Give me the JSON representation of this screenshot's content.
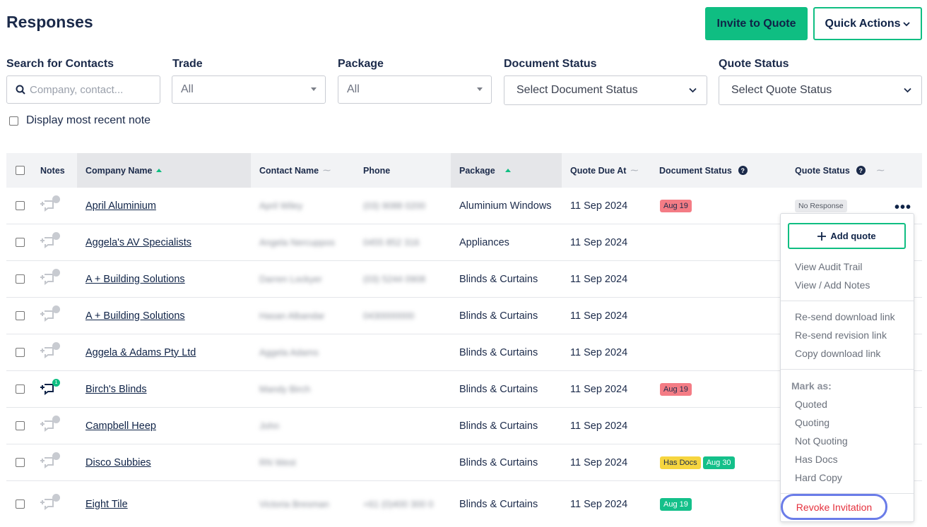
{
  "page": {
    "title": "Responses"
  },
  "header": {
    "invite_label": "Invite to Quote",
    "quick_actions_label": "Quick Actions"
  },
  "filters": {
    "search": {
      "label": "Search for Contacts",
      "placeholder": "Company, contact..."
    },
    "trade": {
      "label": "Trade",
      "value": "All"
    },
    "package": {
      "label": "Package",
      "value": "All"
    },
    "document_status": {
      "label": "Document Status",
      "value": "Select Document Status"
    },
    "quote_status": {
      "label": "Quote Status",
      "value": "Select Quote Status"
    },
    "recent_note_label": "Display most recent note"
  },
  "table": {
    "headers": {
      "notes": "Notes",
      "company": "Company Name",
      "contact": "Contact Name",
      "phone": "Phone",
      "package": "Package",
      "due": "Quote Due At",
      "doc_status": "Document Status",
      "quote_status": "Quote Status"
    },
    "rows": [
      {
        "notes": "",
        "company": "April Aluminium",
        "contact": "April Wiley",
        "phone": "(03) 9088 0200",
        "package": "Aluminium Windows",
        "due": "11 Sep 2024",
        "doc_badges": [
          {
            "text": "Aug 19",
            "kind": "red"
          }
        ],
        "quote_status": "No Response"
      },
      {
        "notes": "",
        "company": "Aggela's AV Specialists",
        "contact": "Angela Nercuppos",
        "phone": "0455 852 316",
        "package": "Appliances",
        "due": "11 Sep 2024",
        "doc_badges": [],
        "quote_status": ""
      },
      {
        "notes": "",
        "company": "A + Building Solutions",
        "contact": "Darren Lockyer",
        "phone": "(03) 5244 0908",
        "package": "Blinds & Curtains",
        "due": "11 Sep 2024",
        "doc_badges": [],
        "quote_status": ""
      },
      {
        "notes": "",
        "company": "A + Building Solutions",
        "contact": "Hasan Albandar",
        "phone": "0430000000",
        "package": "Blinds & Curtains",
        "due": "11 Sep 2024",
        "doc_badges": [],
        "quote_status": ""
      },
      {
        "notes": "",
        "company": "Aggela & Adams Pty Ltd",
        "contact": "Aggela Adams",
        "phone": "",
        "package": "Blinds & Curtains",
        "due": "11 Sep 2024",
        "doc_badges": [],
        "quote_status": ""
      },
      {
        "notes": "1",
        "company": "Birch's Blinds",
        "contact": "Mandy Birch",
        "phone": "",
        "package": "Blinds & Curtains",
        "due": "11 Sep 2024",
        "doc_badges": [
          {
            "text": "Aug 19",
            "kind": "red"
          }
        ],
        "quote_status": ""
      },
      {
        "notes": "",
        "company": "Campbell Heep",
        "contact": "John",
        "phone": "",
        "package": "Blinds & Curtains",
        "due": "11 Sep 2024",
        "doc_badges": [],
        "quote_status": ""
      },
      {
        "notes": "",
        "company": "Disco Subbies",
        "contact": "RN West",
        "phone": "",
        "package": "Blinds & Curtains",
        "due": "11 Sep 2024",
        "doc_badges": [
          {
            "text": "Has Docs",
            "kind": "yellow"
          },
          {
            "text": "Aug 30",
            "kind": "green"
          }
        ],
        "quote_status": ""
      },
      {
        "notes": "",
        "company": "Eight Tile",
        "contact": "Victoria Bresman",
        "phone": "+61 (0)400 300 0",
        "package": "Blinds & Curtains",
        "due": "11 Sep 2024",
        "doc_badges": [
          {
            "text": "Aug 19",
            "kind": "green"
          }
        ],
        "quote_status": ""
      }
    ]
  },
  "menu": {
    "add_quote": "Add quote",
    "group1": [
      "View Audit Trail",
      "View / Add Notes"
    ],
    "group2": [
      "Re-send download link",
      "Re-send revision link",
      "Copy download link"
    ],
    "mark_as_label": "Mark as:",
    "group3": [
      "Quoted",
      "Quoting",
      "Not Quoting",
      "Has Docs",
      "Hard Copy"
    ],
    "revoke": "Revoke Invitation"
  },
  "colors": {
    "accent": "#0fbe82",
    "navy": "#1b2a4a",
    "danger": "#e5303d",
    "focus_ring": "#6a7ce8"
  }
}
